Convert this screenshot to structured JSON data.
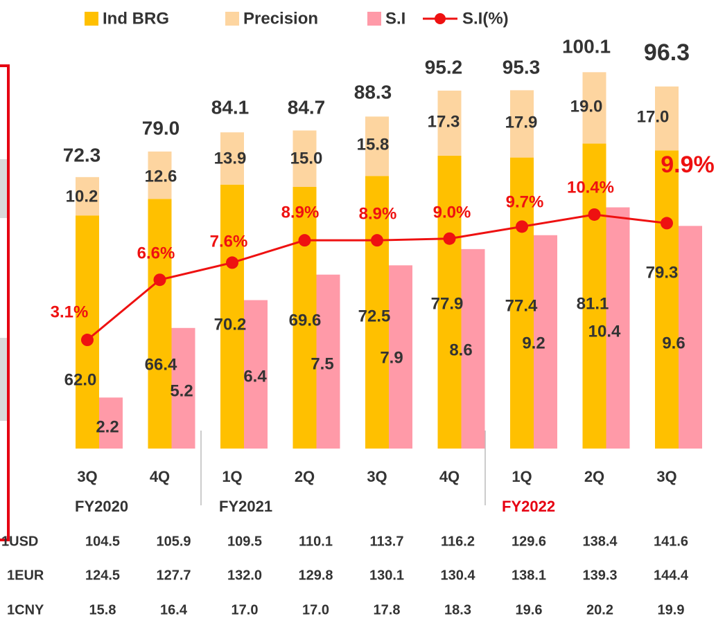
{
  "chart_data": {
    "type": "bar",
    "categories": [
      "3Q",
      "4Q",
      "1Q",
      "2Q",
      "3Q",
      "4Q",
      "1Q",
      "2Q",
      "3Q"
    ],
    "fiscal_years": [
      {
        "label": "FY2020",
        "color": "#333333"
      },
      {
        "label": "FY2021",
        "color": "#333333"
      },
      {
        "label": "FY2022",
        "color": "#e60012"
      }
    ],
    "series": [
      {
        "name": "Ind BRG",
        "color": "#ffc000",
        "stack": "total",
        "values": [
          62.0,
          66.4,
          70.2,
          69.6,
          72.5,
          77.9,
          77.4,
          81.1,
          79.3
        ],
        "value_labels": [
          "62.0",
          "66.4",
          "70.2",
          "69.6",
          "72.5",
          "77.9",
          "77.4",
          "81.1",
          "79.3"
        ]
      },
      {
        "name": "Precision",
        "color": "#fdd5a0",
        "stack": "total",
        "values": [
          10.2,
          12.6,
          13.9,
          15.0,
          15.8,
          17.3,
          17.9,
          19.0,
          17.0
        ],
        "value_labels": [
          "10.2",
          "12.6",
          "13.9",
          "15.0",
          "15.8",
          "17.3",
          "17.9",
          "19.0",
          "17.0"
        ]
      },
      {
        "name": "S.I",
        "color": "#ff9aa8",
        "axis": "y3",
        "values": [
          2.2,
          5.2,
          6.4,
          7.5,
          7.9,
          8.6,
          9.2,
          10.4,
          9.6
        ],
        "value_labels": [
          "2.2",
          "5.2",
          "6.4",
          "7.5",
          "7.9",
          "8.6",
          "9.2",
          "10.4",
          "9.6"
        ]
      },
      {
        "name": "S.I(%)",
        "color": "#ee1111",
        "type": "line",
        "axis": "y2",
        "values": [
          3.1,
          6.6,
          7.6,
          8.9,
          8.9,
          9.0,
          9.7,
          10.4,
          9.9
        ],
        "value_labels": [
          "3.1%",
          "6.6%",
          "7.6%",
          "8.9%",
          "8.9%",
          "9.0%",
          "9.7%",
          "10.4%",
          "9.9%"
        ]
      }
    ],
    "totals": [
      72.3,
      79.0,
      84.1,
      84.7,
      88.3,
      95.2,
      95.3,
      100.1,
      96.3
    ],
    "total_labels": [
      "72.3",
      "79.0",
      "84.1",
      "84.7",
      "88.3",
      "95.2",
      "95.3",
      "100.1",
      "96.3"
    ],
    "ylim": [
      0,
      119.3
    ],
    "y2lim": [
      -3.23,
      22.9
    ],
    "y3lim": [
      0,
      19.34
    ],
    "legend": "top"
  },
  "exchange_table": {
    "rows": [
      {
        "label": "1USD",
        "values": [
          "104.5",
          "105.9",
          "109.5",
          "110.1",
          "113.7",
          "116.2",
          "129.6",
          "138.4",
          "141.6"
        ]
      },
      {
        "label": "1EUR",
        "values": [
          "124.5",
          "127.7",
          "132.0",
          "129.8",
          "130.1",
          "130.4",
          "138.1",
          "139.3",
          "144.4"
        ]
      },
      {
        "label": "1CNY",
        "values": [
          "15.8",
          "16.4",
          "17.0",
          "17.0",
          "17.8",
          "18.3",
          "19.6",
          "20.2",
          "19.9"
        ]
      }
    ]
  }
}
